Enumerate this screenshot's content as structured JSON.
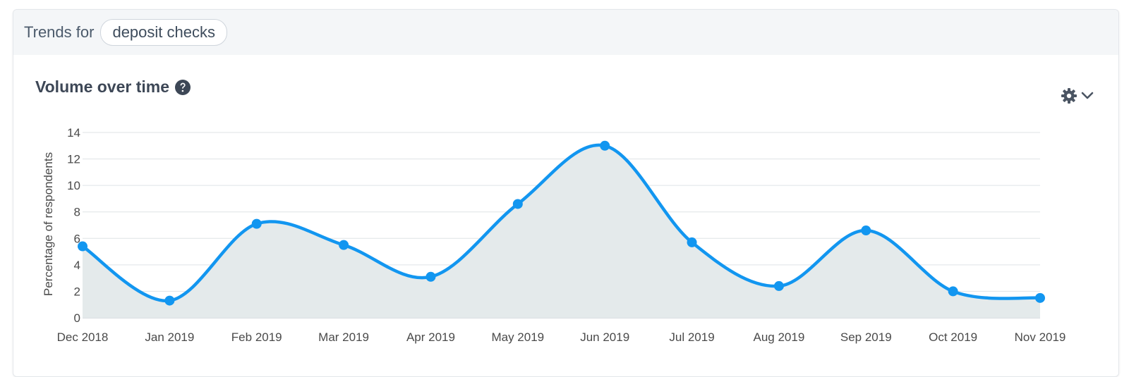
{
  "header": {
    "prefix": "Trends for",
    "topic": "deposit checks"
  },
  "section": {
    "title": "Volume over time",
    "help_icon": "question-circle-icon",
    "settings_icon": "gear-icon",
    "dropdown_icon": "chevron-down-icon"
  },
  "colors": {
    "line": "#1296f0",
    "area": "#e4eaeb",
    "grid": "#dfe3e6"
  },
  "chart_data": {
    "type": "area",
    "title": "Volume over time",
    "xlabel": "",
    "ylabel": "Percentage of respondents",
    "ylim": [
      0,
      14
    ],
    "yticks": [
      0,
      2,
      4,
      6,
      8,
      10,
      12,
      14
    ],
    "grid": true,
    "categories": [
      "Dec 2018",
      "Jan 2019",
      "Feb 2019",
      "Mar 2019",
      "Apr 2019",
      "May 2019",
      "Jun 2019",
      "Jul 2019",
      "Aug 2019",
      "Sep 2019",
      "Oct 2019",
      "Nov 2019"
    ],
    "series": [
      {
        "values": [
          5.4,
          1.3,
          7.1,
          5.5,
          3.1,
          8.6,
          13.0,
          5.7,
          2.4,
          6.6,
          2.0,
          1.5
        ]
      }
    ]
  }
}
